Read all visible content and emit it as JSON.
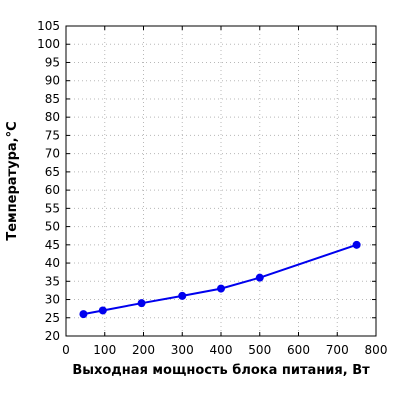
{
  "chart_data": {
    "type": "line",
    "title": "",
    "xlabel": "Выходная мощность блока питания, Вт",
    "ylabel": "Температура,°C",
    "xlim": [
      0,
      800
    ],
    "ylim": [
      20,
      105
    ],
    "xticks": [
      0,
      100,
      200,
      300,
      400,
      500,
      600,
      700,
      800
    ],
    "yticks": [
      20,
      25,
      30,
      35,
      40,
      45,
      50,
      55,
      60,
      65,
      70,
      75,
      80,
      85,
      90,
      95,
      100,
      105
    ],
    "xtick_labels": [
      "0",
      "100",
      "200",
      "300",
      "400",
      "500",
      "600",
      "700",
      "800"
    ],
    "ytick_labels": [
      "20",
      "25",
      "30",
      "35",
      "40",
      "45",
      "50",
      "55",
      "60",
      "65",
      "70",
      "75",
      "80",
      "85",
      "90",
      "95",
      "100",
      "105"
    ],
    "grid": true,
    "legend": "none",
    "series": [
      {
        "color": "#0000ee",
        "x": [
          45,
          95,
          195,
          300,
          400,
          500,
          750
        ],
        "y": [
          26,
          27,
          29,
          31,
          33,
          36,
          45
        ]
      }
    ]
  }
}
